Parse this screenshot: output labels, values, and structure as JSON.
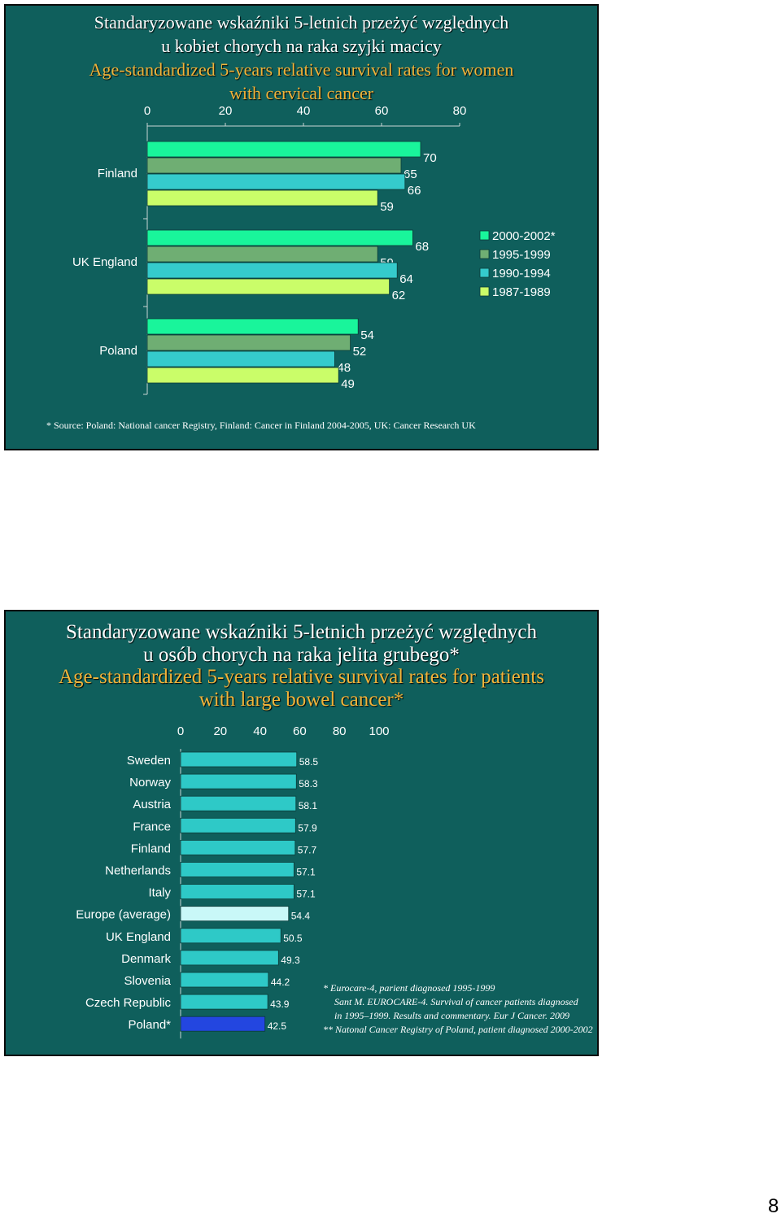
{
  "slide1": {
    "title_lines": [
      "Standaryzowane wskaźniki 5-letnich przeżyć względnych",
      "u kobiet chorych na raka szyjki macicy"
    ],
    "subtitle_lines": [
      "Age-standardized 5-years relative survival rates for women",
      "with cervical cancer"
    ],
    "source_note": "* Source: Poland: National cancer Registry, Finland: Cancer in Finland 2004-2005, UK: Cancer Research UK"
  },
  "slide2": {
    "title_lines": [
      "Standaryzowane wskaźniki 5-letnich przeżyć względnych",
      "u osób chorych na raka jelita grubego*"
    ],
    "subtitle_lines": [
      "Age-standardized 5-years relative survival rates for patients",
      "with large bowel cancer*"
    ],
    "notes": [
      "* Eurocare-4, parient diagnosed 1995-1999",
      "Sant M. EUROCARE-4. Survival of cancer patients diagnosed",
      "in 1995–1999. Results and commentary. Eur J Cancer. 2009",
      "** Natonal Cancer Registry of Poland, patient diagnosed 2000-2002"
    ]
  },
  "page_number": "8",
  "colors": {
    "background": "#0f5f5c",
    "series": [
      "#19f59b",
      "#6fae73",
      "#35cbcc",
      "#cafd69"
    ],
    "bar2": "#2ec9c7",
    "bar2_europe": "#c9f8f8",
    "bar2_poland": "#2346e0",
    "subtitle": "#f0b33a"
  },
  "chart_data": [
    {
      "type": "bar",
      "orientation": "horizontal",
      "categories": [
        "Finland",
        "UK England",
        "Poland"
      ],
      "series": [
        {
          "name": "2000-2002*",
          "values": [
            70,
            68,
            54
          ]
        },
        {
          "name": "1995-1999",
          "values": [
            65,
            59,
            52
          ]
        },
        {
          "name": "1990-1994",
          "values": [
            66,
            64,
            48
          ]
        },
        {
          "name": "1987-1989",
          "values": [
            59,
            62,
            49
          ]
        }
      ],
      "xlim": [
        0,
        80
      ],
      "xticks": [
        "0",
        "20",
        "40",
        "60",
        "80"
      ],
      "legend": "right"
    },
    {
      "type": "bar",
      "orientation": "horizontal",
      "categories": [
        "Sweden",
        "Norway",
        "Austria",
        "France",
        "Finland",
        "Netherlands",
        "Italy",
        "Europe (average)",
        "UK England",
        "Denmark",
        "Slovenia",
        "Czech Republic",
        "Poland*"
      ],
      "values": [
        58.5,
        58.3,
        58.1,
        57.9,
        57.7,
        57.1,
        57.1,
        54.4,
        50.5,
        49.3,
        44.2,
        43.9,
        42.5
      ],
      "value_labels": [
        "58.5",
        "58.3",
        "58.1",
        "57.9",
        "57.7",
        "57.1",
        "57.1",
        "54.4",
        "50.5",
        "49.3",
        "44.2",
        "43.9",
        "42.5"
      ],
      "xlim": [
        0,
        100
      ],
      "xticks": [
        "0",
        "20",
        "40",
        "60",
        "80",
        "100"
      ]
    }
  ]
}
